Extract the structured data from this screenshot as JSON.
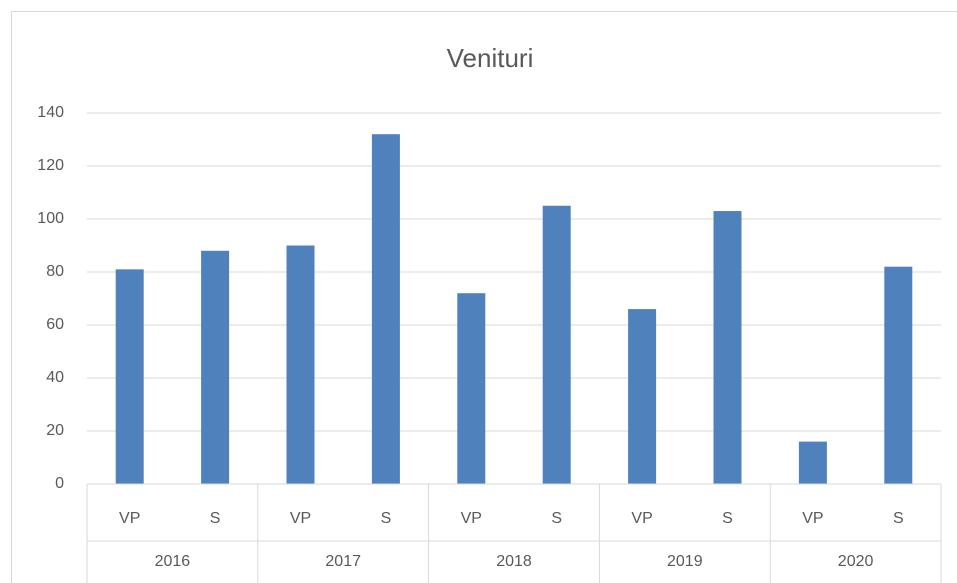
{
  "chart_data": {
    "type": "bar",
    "title": "Venituri",
    "categories": [
      "VP",
      "S",
      "VP",
      "S",
      "VP",
      "S",
      "VP",
      "S",
      "VP",
      "S"
    ],
    "category_groups": [
      "2016",
      "2017",
      "2018",
      "2019",
      "2020"
    ],
    "values": [
      81,
      88,
      90,
      132,
      72,
      105,
      66,
      103,
      16,
      82
    ],
    "color": "#4f81bd",
    "ylim": [
      0,
      140
    ],
    "yticks": [
      0,
      20,
      40,
      60,
      80,
      100,
      120,
      140
    ],
    "grid": true
  }
}
